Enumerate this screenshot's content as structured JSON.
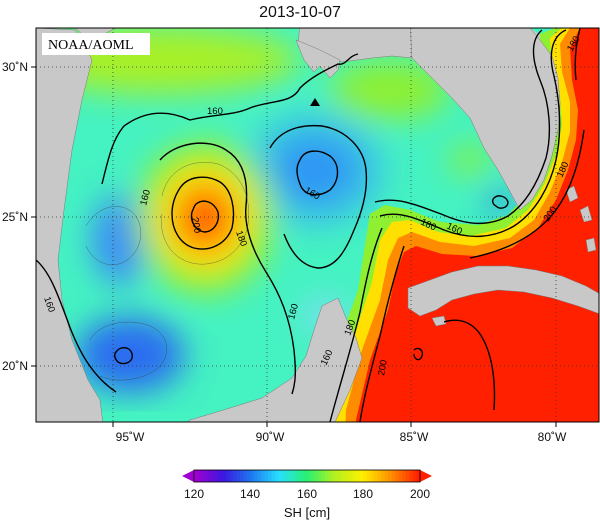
{
  "title": "2013-10-07",
  "credit": "NOAA/AOML",
  "chart_data": {
    "type": "heatmap",
    "variable": "SH",
    "unit": "[cm]",
    "colorbar": {
      "label": "SH [cm]",
      "min": 120,
      "max": 200,
      "ticks": [
        "120",
        "140",
        "160",
        "180",
        "200"
      ],
      "extend": "both",
      "colors": [
        "#a000d0",
        "#3a18e0",
        "#1e78f0",
        "#28e0ff",
        "#28f070",
        "#b4f020",
        "#fff000",
        "#ff9000",
        "#ff2000"
      ]
    },
    "x_axis": {
      "range_deg_lon": [
        -98.5,
        -79
      ],
      "ticks": [
        "95˚W",
        "90˚W",
        "85˚W",
        "80˚W"
      ],
      "tick_values": [
        -95,
        -90,
        -85,
        -80
      ]
    },
    "y_axis": {
      "range_deg_lat": [
        18,
        31
      ],
      "ticks": [
        "20˚N",
        "25˚N",
        "30˚N"
      ],
      "tick_values": [
        20,
        25,
        30
      ]
    },
    "grid": "dotted",
    "contour_labels": [
      "160",
      "160",
      "160",
      "160",
      "160",
      "180",
      "180",
      "200",
      "160",
      "180",
      "160",
      "180",
      "200",
      "200",
      "180"
    ],
    "features": [
      {
        "name": "anticyclonic-eddy-peak",
        "lon": -92.3,
        "lat": 25.0,
        "value": 200
      },
      {
        "name": "cyclonic-eddy-low",
        "lon": -88.2,
        "lat": 26.5,
        "value": 148
      },
      {
        "name": "western-low",
        "lon": -95.2,
        "lat": 20.3,
        "value": 140
      },
      {
        "name": "loop-current-core",
        "lon": -83,
        "lat": 21,
        "value": 210
      }
    ],
    "marker": {
      "shape": "triangle",
      "lon": -88.0,
      "lat": 28.9
    },
    "colors": {
      "land": "#c8c8c8",
      "background": "#ffffff"
    }
  }
}
